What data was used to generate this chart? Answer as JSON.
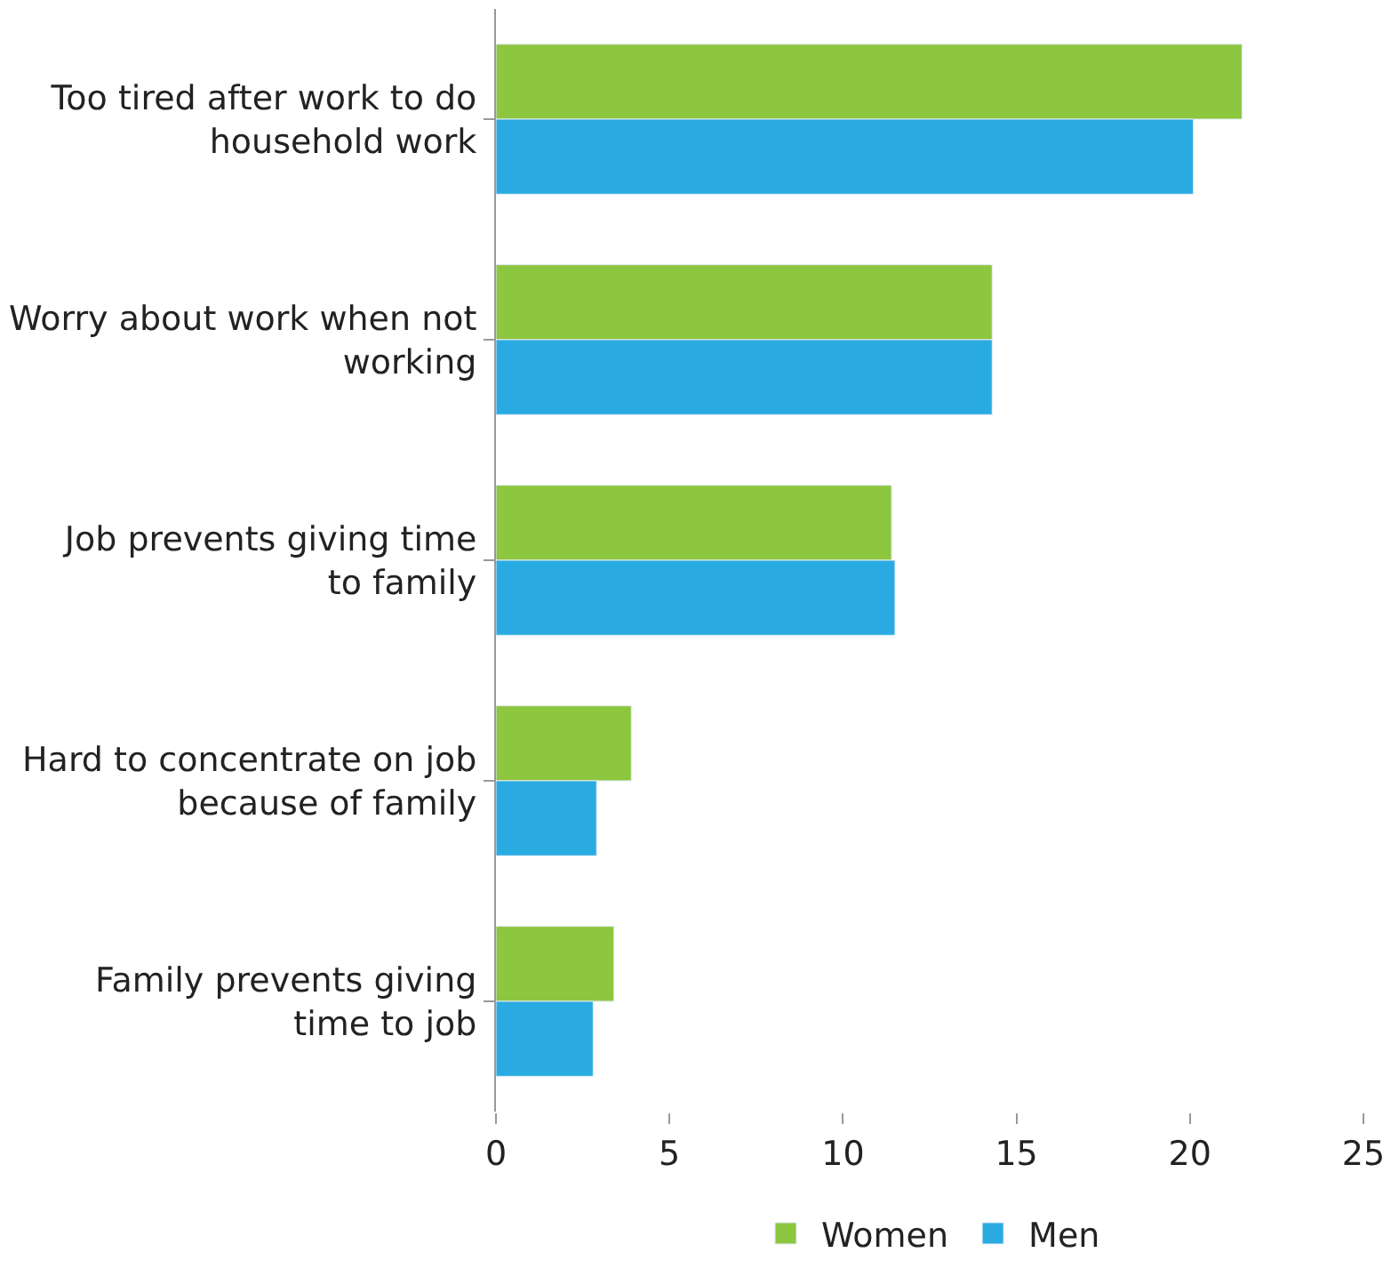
{
  "chart_data": {
    "type": "bar",
    "orientation": "horizontal",
    "categories": [
      "Too tired after work to do household work",
      "Worry about work when not working",
      "Job prevents giving time to family",
      "Hard to concentrate on job because of family",
      "Family prevents giving time to job"
    ],
    "series": [
      {
        "name": "Women",
        "color": "#8dc63f",
        "values": [
          21.5,
          14.3,
          11.4,
          3.9,
          3.4
        ]
      },
      {
        "name": "Men",
        "color": "#29abe2",
        "values": [
          20.1,
          14.3,
          11.5,
          2.9,
          2.8
        ]
      }
    ],
    "xlim": [
      0,
      25
    ],
    "xticks": [
      0,
      5,
      10,
      15,
      20,
      25
    ],
    "legend": "bottom"
  }
}
